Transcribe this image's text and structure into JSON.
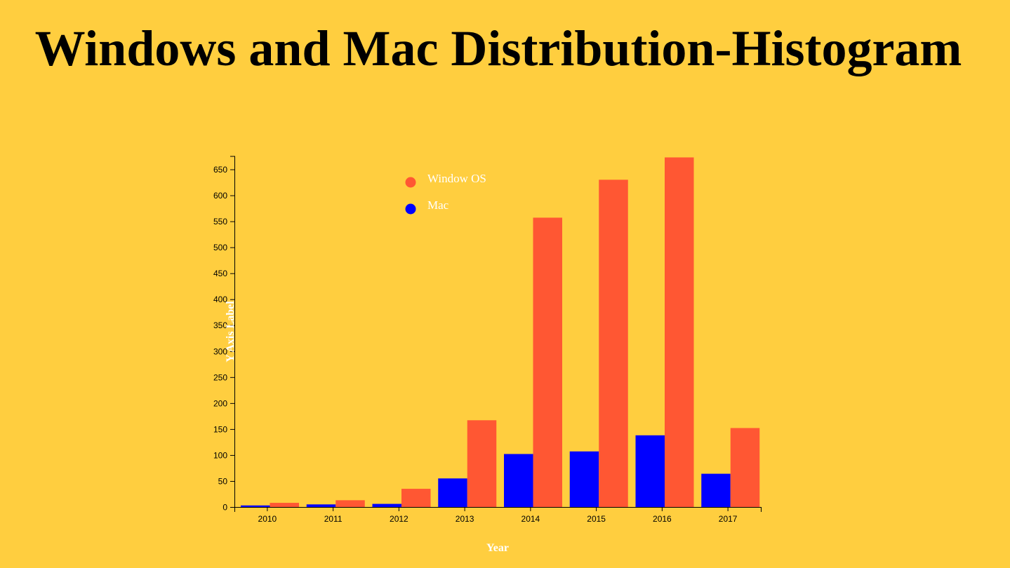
{
  "page": {
    "title": "Windows and Mac Distribution-Histogram"
  },
  "colors": {
    "background": "#ffce3f",
    "title": "#000000",
    "windows": "#ff5733",
    "mac": "#0000ff",
    "axis": "#000000",
    "label": "#ffffff"
  },
  "chart_data": {
    "type": "bar",
    "title": "Windows and Mac Distribution-Histogram",
    "xlabel": "Year",
    "ylabel": "Y Axis Label",
    "categories": [
      "2010",
      "2011",
      "2012",
      "2013",
      "2014",
      "2015",
      "2016",
      "2017"
    ],
    "series": [
      {
        "name": "Mac",
        "color": "#0000ff",
        "values": [
          3,
          5,
          6,
          55,
          102,
          107,
          138,
          64
        ]
      },
      {
        "name": "Window OS",
        "color": "#ff5733",
        "values": [
          8,
          13,
          35,
          167,
          557,
          630,
          673,
          152
        ]
      }
    ],
    "ylim": [
      0,
      675
    ],
    "yticks": [
      0,
      50,
      100,
      150,
      200,
      250,
      300,
      350,
      400,
      450,
      500,
      550,
      600,
      650
    ],
    "legend": [
      {
        "label": "Window OS",
        "color": "#ff5733"
      },
      {
        "label": "Mac",
        "color": "#0000ff"
      }
    ],
    "legend_position": "top-left",
    "grid": false
  }
}
